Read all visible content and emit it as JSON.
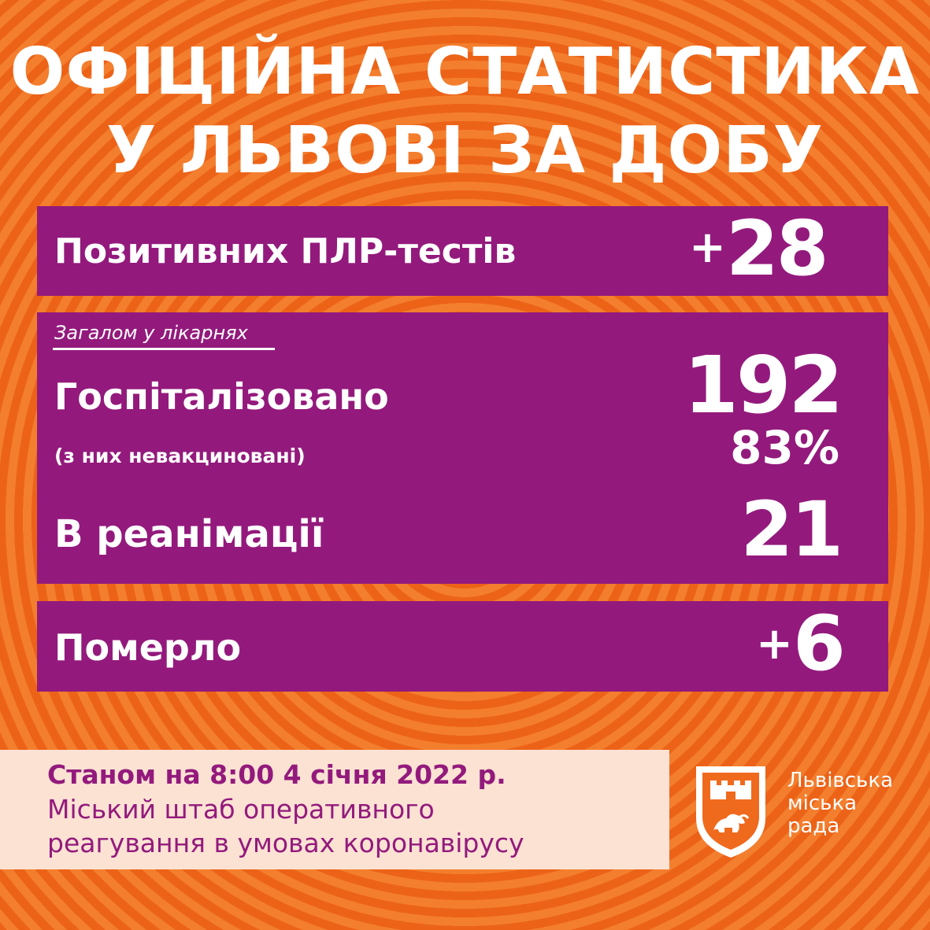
{
  "title": {
    "line1": "ОФІЦІЙНА СТАТИСТИКА",
    "line2": "У ЛЬВОВІ ЗА ДОБУ"
  },
  "tests": {
    "label": "Позитивних ПЛР-тестів",
    "sign": "+",
    "value": "28"
  },
  "hospital": {
    "note": "Загалом у лікарнях",
    "label": "Госпіталізовано",
    "value": "192",
    "unvax_label": "(з них невакциновані)",
    "unvax_value": "83%"
  },
  "icu": {
    "label": "В реанімації",
    "value": "21"
  },
  "deaths": {
    "label": "Померло",
    "sign": "+",
    "value": "6"
  },
  "footer": {
    "date": "Станом на 8:00 4 січня 2022 р.",
    "line1": "Міський штаб оперативного",
    "line2": "реагування в умовах коронавірусу"
  },
  "org": {
    "line1": "Львівська",
    "line2": "міська",
    "line3": "рада",
    "logo_icon": "lviv-coat-of-arms-icon"
  },
  "colors": {
    "background": "#f06a1e",
    "panel": "#931a7c",
    "footer_bg": "#fbe2d3",
    "text": "#ffffff"
  }
}
